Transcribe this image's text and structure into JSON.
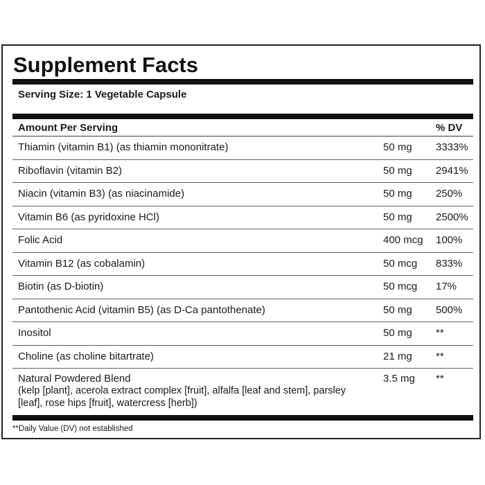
{
  "panel": {
    "title": "Supplement Facts",
    "serving_size": "Serving Size: 1 Vegetable Capsule",
    "header": {
      "amount_label": "Amount Per Serving",
      "dv_label": "% DV"
    },
    "rows": [
      {
        "name": "Thiamin (vitamin B1) (as thiamin mononitrate)",
        "amount": "50 mg",
        "dv": "3333%"
      },
      {
        "name": "Riboflavin (vitamin B2)",
        "amount": "50 mg",
        "dv": "2941%"
      },
      {
        "name": "Niacin (vitamin B3) (as niacinamide)",
        "amount": "50 mg",
        "dv": "250%"
      },
      {
        "name": "Vitamin B6 (as pyridoxine HCl)",
        "amount": "50 mg",
        "dv": "2500%"
      },
      {
        "name": "Folic Acid",
        "amount": "400 mcg",
        "dv": "100%"
      },
      {
        "name": "Vitamin B12 (as cobalamin)",
        "amount": "50 mcg",
        "dv": "833%"
      },
      {
        "name": "Biotin (as D-biotin)",
        "amount": "50 mcg",
        "dv": "17%"
      },
      {
        "name": "Pantothenic Acid (vitamin B5) (as D-Ca pantothenate)",
        "amount": "50 mg",
        "dv": "500%"
      },
      {
        "name": "Inositol",
        "amount": "50 mg",
        "dv": "**"
      },
      {
        "name": "Choline (as choline bitartrate)",
        "amount": "21 mg",
        "dv": "**"
      }
    ],
    "blend": {
      "name": "Natural Powdered Blend",
      "ingredients": "(kelp [plant], acerola extract complex [fruit], alfalfa [leaf and stem], parsley [leaf], rose hips [fruit], watercress [herb])",
      "amount": "3.5 mg",
      "dv": "**"
    },
    "footnote": "**Daily Value (DV) not established"
  }
}
